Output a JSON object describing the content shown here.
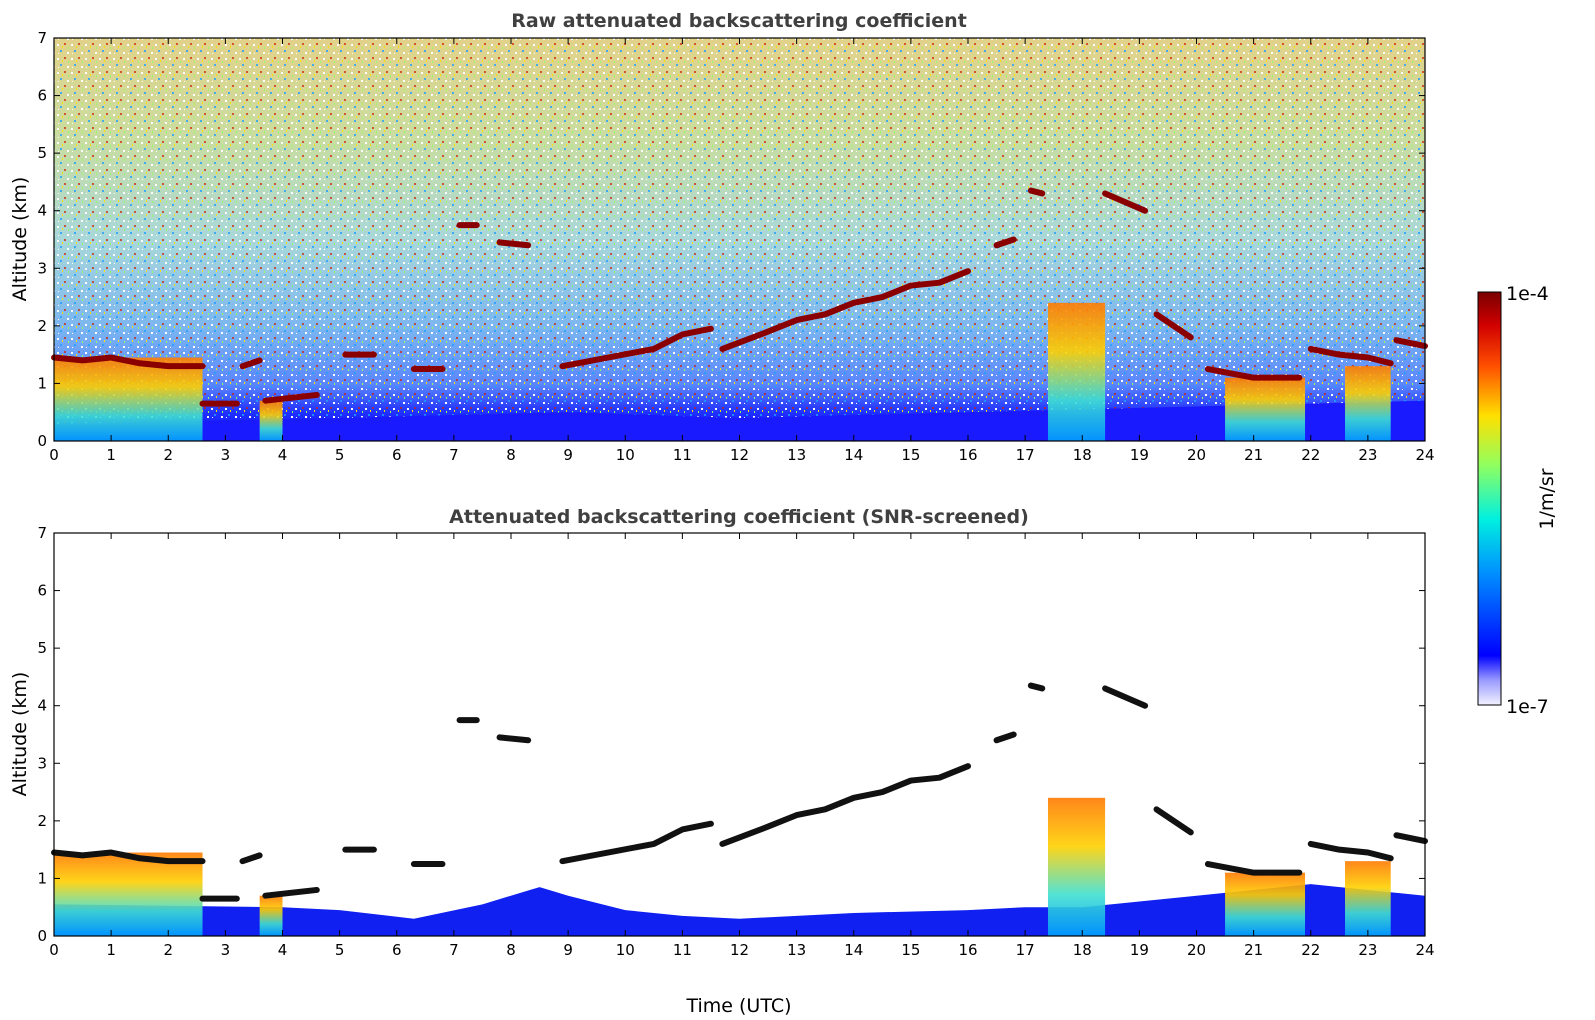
{
  "chart_data": [
    {
      "type": "heatmap",
      "title": "Raw attenuated backscattering coefficient",
      "xlabel": "",
      "ylabel": "Altitude (km)",
      "xlim": [
        0,
        24
      ],
      "ylim": [
        0,
        7
      ],
      "x_ticks": [
        "0",
        "1",
        "2",
        "3",
        "4",
        "5",
        "6",
        "7",
        "8",
        "9",
        "10",
        "11",
        "12",
        "13",
        "14",
        "15",
        "16",
        "17",
        "18",
        "19",
        "20",
        "21",
        "22",
        "23",
        "24"
      ],
      "y_ticks": [
        "0",
        "1",
        "2",
        "3",
        "4",
        "5",
        "6",
        "7"
      ],
      "screened": false,
      "cloud_layers": [
        {
          "x": [
            0.0,
            0.5,
            1.0,
            1.5,
            2.0,
            2.6
          ],
          "y": [
            1.45,
            1.4,
            1.45,
            1.35,
            1.3,
            1.3
          ]
        },
        {
          "x": [
            2.6,
            3.2
          ],
          "y": [
            0.65,
            0.65
          ]
        },
        {
          "x": [
            3.3,
            3.6
          ],
          "y": [
            1.3,
            1.4
          ]
        },
        {
          "x": [
            3.7,
            4.6
          ],
          "y": [
            0.7,
            0.8
          ]
        },
        {
          "x": [
            5.1,
            5.6
          ],
          "y": [
            1.5,
            1.5
          ]
        },
        {
          "x": [
            6.3,
            6.8
          ],
          "y": [
            1.25,
            1.25
          ]
        },
        {
          "x": [
            7.1,
            7.4
          ],
          "y": [
            3.75,
            3.75
          ]
        },
        {
          "x": [
            7.8,
            8.3
          ],
          "y": [
            3.45,
            3.4
          ]
        },
        {
          "x": [
            8.9,
            10.5,
            11.0,
            11.5
          ],
          "y": [
            1.3,
            1.6,
            1.85,
            1.95
          ]
        },
        {
          "x": [
            11.7,
            12.5,
            13.0,
            13.5,
            14.0,
            14.5,
            15.0,
            15.5,
            16.0
          ],
          "y": [
            1.6,
            1.9,
            2.1,
            2.2,
            2.4,
            2.5,
            2.7,
            2.75,
            2.95
          ]
        },
        {
          "x": [
            16.5,
            16.8
          ],
          "y": [
            3.4,
            3.5
          ]
        },
        {
          "x": [
            17.1,
            17.3
          ],
          "y": [
            4.35,
            4.3
          ]
        },
        {
          "x": [
            18.4,
            19.1
          ],
          "y": [
            4.3,
            4.0
          ]
        },
        {
          "x": [
            19.3,
            19.9
          ],
          "y": [
            2.2,
            1.8
          ]
        },
        {
          "x": [
            20.2,
            21.0,
            21.8
          ],
          "y": [
            1.25,
            1.1,
            1.1
          ]
        },
        {
          "x": [
            22.0,
            22.5,
            23.0,
            23.4
          ],
          "y": [
            1.6,
            1.5,
            1.45,
            1.35
          ]
        },
        {
          "x": [
            23.5,
            24.0
          ],
          "y": [
            1.75,
            1.65
          ]
        }
      ],
      "plumes": [
        {
          "x0": 0.0,
          "x1": 2.6,
          "top": 1.45
        },
        {
          "x0": 3.6,
          "x1": 4.0,
          "top": 0.7
        },
        {
          "x0": 17.4,
          "x1": 18.4,
          "top": 2.4
        },
        {
          "x0": 20.5,
          "x1": 21.9,
          "top": 1.1
        },
        {
          "x0": 22.6,
          "x1": 23.4,
          "top": 1.3
        }
      ]
    },
    {
      "type": "heatmap",
      "title": "Attenuated backscattering coefficient (SNR-screened)",
      "xlabel": "Time (UTC)",
      "ylabel": "Altitude (km)",
      "xlim": [
        0,
        24
      ],
      "ylim": [
        0,
        7
      ],
      "x_ticks": [
        "0",
        "1",
        "2",
        "3",
        "4",
        "5",
        "6",
        "7",
        "8",
        "9",
        "10",
        "11",
        "12",
        "13",
        "14",
        "15",
        "16",
        "17",
        "18",
        "19",
        "20",
        "21",
        "22",
        "23",
        "24"
      ],
      "y_ticks": [
        "0",
        "1",
        "2",
        "3",
        "4",
        "5",
        "6",
        "7"
      ],
      "screened": true
    }
  ],
  "colorbar": {
    "label": "1/m/sr",
    "max_label": "1e-4",
    "min_label": "1e-7",
    "colormap": [
      "#ffffff",
      "#0000ff",
      "#00a0ff",
      "#00ffd0",
      "#b0ff50",
      "#ffe000",
      "#ff6000",
      "#d00000",
      "#7a0000"
    ]
  }
}
